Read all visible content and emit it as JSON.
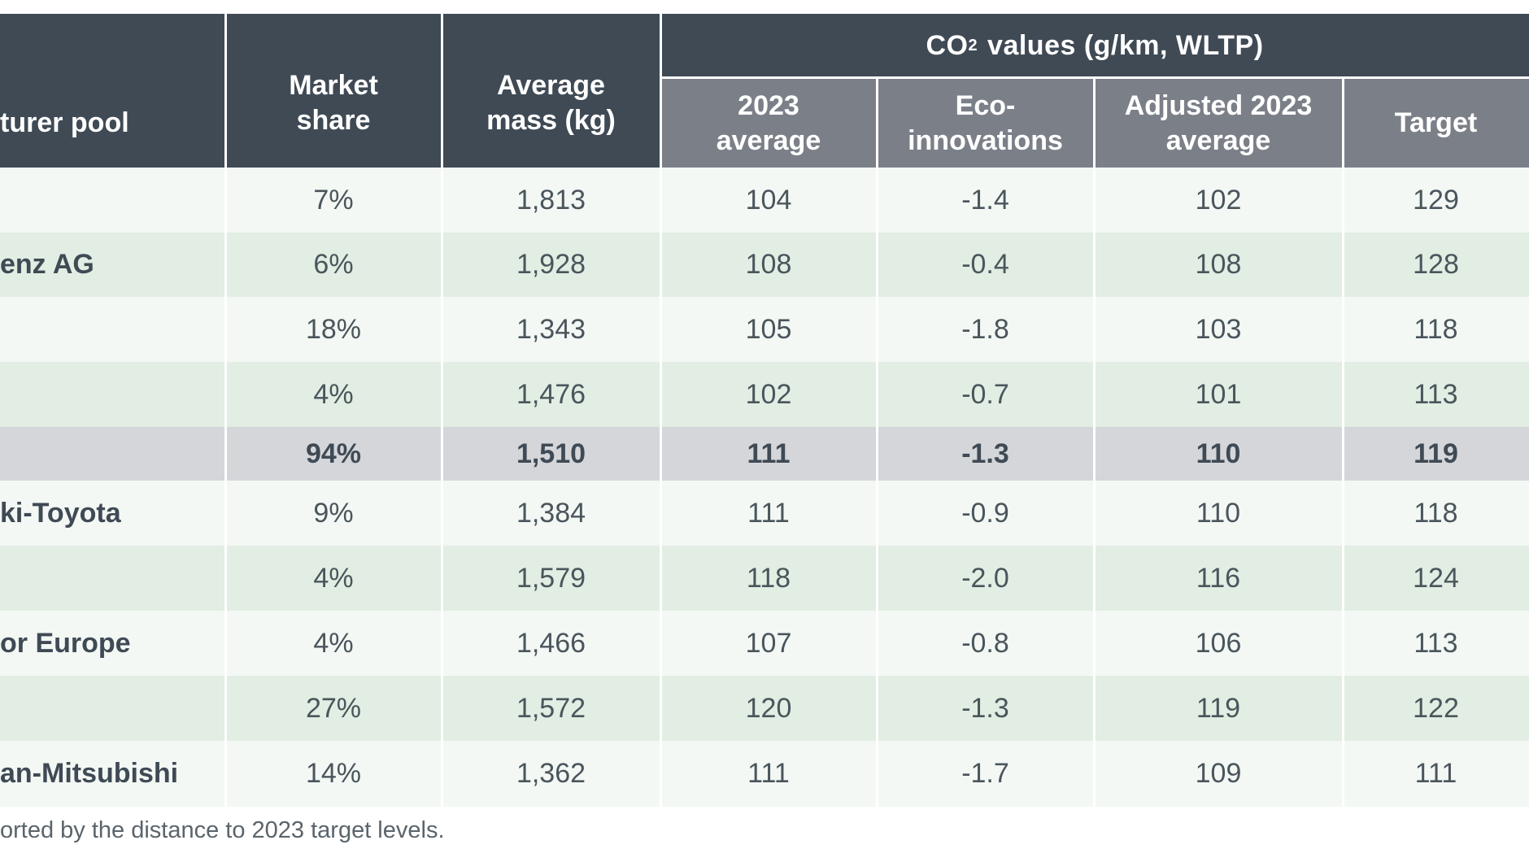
{
  "table": {
    "headers": {
      "pool": "turer pool",
      "market_share": "Market share",
      "average_mass": "Average mass (kg)",
      "co2_group_prefix": "CO",
      "co2_group_sub": "2",
      "co2_group_suffix": " values (g/km, WLTP)",
      "avg_2023": "2023 average",
      "eco_innovations": "Eco-innovations",
      "adjusted_2023": "Adjusted 2023 average",
      "target": "Target"
    },
    "rows": [
      {
        "name": "",
        "market_share": "7%",
        "mass": "1,813",
        "avg_2023": "104",
        "eco": "-1.4",
        "adjusted": "102",
        "target": "129"
      },
      {
        "name": "enz AG",
        "market_share": "6%",
        "mass": "1,928",
        "avg_2023": "108",
        "eco": "-0.4",
        "adjusted": "108",
        "target": "128"
      },
      {
        "name": "",
        "market_share": "18%",
        "mass": "1,343",
        "avg_2023": "105",
        "eco": "-1.8",
        "adjusted": "103",
        "target": "118"
      },
      {
        "name": "",
        "market_share": "4%",
        "mass": "1,476",
        "avg_2023": "102",
        "eco": "-0.7",
        "adjusted": "101",
        "target": "113"
      },
      {
        "name": "",
        "market_share": "94%",
        "mass": "1,510",
        "avg_2023": "111",
        "eco": "-1.3",
        "adjusted": "110",
        "target": "119"
      },
      {
        "name": "ki-Toyota",
        "market_share": "9%",
        "mass": "1,384",
        "avg_2023": "111",
        "eco": "-0.9",
        "adjusted": "110",
        "target": "118"
      },
      {
        "name": "",
        "market_share": "4%",
        "mass": "1,579",
        "avg_2023": "118",
        "eco": "-2.0",
        "adjusted": "116",
        "target": "124"
      },
      {
        "name": "or Europe",
        "market_share": "4%",
        "mass": "1,466",
        "avg_2023": "107",
        "eco": "-0.8",
        "adjusted": "106",
        "target": "113"
      },
      {
        "name": "",
        "market_share": "27%",
        "mass": "1,572",
        "avg_2023": "120",
        "eco": "-1.3",
        "adjusted": "119",
        "target": "122"
      },
      {
        "name": "an-Mitsubishi",
        "market_share": "14%",
        "mass": "1,362",
        "avg_2023": "111",
        "eco": "-1.7",
        "adjusted": "109",
        "target": "111"
      }
    ],
    "footnote": "orted by the distance to 2023 target levels."
  },
  "colors": {
    "header_dark": "#3f4a55",
    "header_grey": "#7b8088",
    "row_light": "#f3f8f4",
    "row_green": "#e2ede3",
    "row_total": "#d4d6da"
  }
}
